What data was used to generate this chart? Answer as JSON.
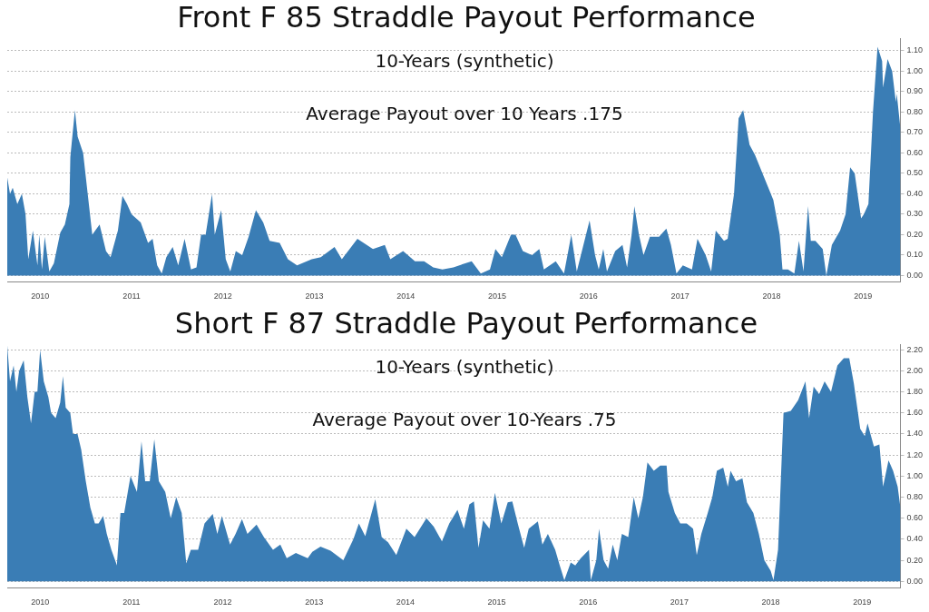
{
  "chart_data": [
    {
      "type": "area",
      "title": "Front F 85 Straddle Payout Performance",
      "subtitle": "10-Years (synthetic)",
      "annotations": [
        "Average Payout over 10 Years .175"
      ],
      "color": "#3a7db5",
      "grid": "y",
      "x": [
        2009.64,
        2009.67,
        2009.7,
        2009.75,
        2009.8,
        2009.84,
        2009.87,
        2009.92,
        2009.97,
        2009.99,
        2010.02,
        2010.05,
        2010.1,
        2010.15,
        2010.22,
        2010.27,
        2010.32,
        2010.33,
        2010.38,
        2010.41,
        2010.47,
        2010.52,
        2010.57,
        2010.65,
        2010.72,
        2010.77,
        2010.85,
        2010.9,
        2010.95,
        2011.0,
        2011.1,
        2011.18,
        2011.23,
        2011.28,
        2011.33,
        2011.38,
        2011.45,
        2011.51,
        2011.58,
        2011.65,
        2011.71,
        2011.76,
        2011.81,
        2011.88,
        2011.91,
        2011.98,
        2012.03,
        2012.08,
        2012.14,
        2012.21,
        2012.28,
        2012.36,
        2012.44,
        2012.51,
        2012.62,
        2012.71,
        2012.81,
        2012.97,
        2013.07,
        2013.22,
        2013.3,
        2013.47,
        2013.64,
        2013.77,
        2013.83,
        2013.97,
        2014.1,
        2014.2,
        2014.3,
        2014.4,
        2014.52,
        2014.65,
        2014.72,
        2014.82,
        2014.92,
        2014.98,
        2015.05,
        2015.15,
        2015.2,
        2015.28,
        2015.38,
        2015.46,
        2015.51,
        2015.64,
        2015.73,
        2015.81,
        2015.87,
        2016.01,
        2016.07,
        2016.11,
        2016.16,
        2016.2,
        2016.29,
        2016.37,
        2016.42,
        2016.47,
        2016.5,
        2016.55,
        2016.6,
        2016.67,
        2016.77,
        2016.85,
        2016.9,
        2016.96,
        2017.03,
        2017.13,
        2017.19,
        2017.28,
        2017.34,
        2017.39,
        2017.48,
        2017.52,
        2017.59,
        2017.64,
        2017.69,
        2017.76,
        2017.82,
        2017.92,
        2018.02,
        2018.09,
        2018.12,
        2018.18,
        2018.25,
        2018.3,
        2018.35,
        2018.4,
        2018.43,
        2018.48,
        2018.56,
        2018.6,
        2018.66,
        2018.75,
        2018.81,
        2018.86,
        2018.91,
        2018.98,
        2019.01,
        2019.06,
        2019.11,
        2019.16,
        2019.21,
        2019.22,
        2019.27,
        2019.32,
        2019.36,
        2019.37,
        2019.41
      ],
      "values": [
        0.48,
        0.4,
        0.43,
        0.35,
        0.4,
        0.3,
        0.08,
        0.22,
        0.05,
        0.2,
        0.03,
        0.19,
        0.02,
        0.06,
        0.21,
        0.25,
        0.35,
        0.58,
        0.81,
        0.68,
        0.6,
        0.4,
        0.2,
        0.25,
        0.12,
        0.09,
        0.22,
        0.39,
        0.35,
        0.3,
        0.26,
        0.16,
        0.18,
        0.05,
        0.01,
        0.09,
        0.14,
        0.05,
        0.18,
        0.03,
        0.04,
        0.2,
        0.2,
        0.4,
        0.2,
        0.32,
        0.08,
        0.02,
        0.12,
        0.1,
        0.19,
        0.32,
        0.26,
        0.17,
        0.16,
        0.08,
        0.05,
        0.08,
        0.09,
        0.14,
        0.08,
        0.18,
        0.13,
        0.15,
        0.08,
        0.12,
        0.07,
        0.07,
        0.04,
        0.03,
        0.04,
        0.06,
        0.07,
        0.01,
        0.03,
        0.13,
        0.09,
        0.2,
        0.2,
        0.12,
        0.1,
        0.13,
        0.03,
        0.07,
        0.01,
        0.2,
        0.02,
        0.27,
        0.1,
        0.03,
        0.13,
        0.02,
        0.12,
        0.15,
        0.04,
        0.2,
        0.34,
        0.2,
        0.1,
        0.19,
        0.19,
        0.23,
        0.15,
        0.01,
        0.05,
        0.03,
        0.18,
        0.1,
        0.02,
        0.22,
        0.17,
        0.18,
        0.4,
        0.77,
        0.81,
        0.64,
        0.59,
        0.48,
        0.37,
        0.2,
        0.03,
        0.03,
        0.01,
        0.17,
        0.02,
        0.34,
        0.17,
        0.17,
        0.13,
        0.0,
        0.15,
        0.22,
        0.3,
        0.53,
        0.5,
        0.28,
        0.3,
        0.35,
        0.8,
        1.12,
        1.05,
        0.92,
        1.06,
        1.0,
        0.85,
        0.89,
        0.72
      ],
      "xlim": [
        2009.64,
        2019.41
      ],
      "xticks": [
        2010,
        2011,
        2012,
        2013,
        2014,
        2015,
        2016,
        2017,
        2018,
        2019
      ],
      "ylim": [
        -0.03,
        1.16
      ],
      "yticks": [
        {
          "value": 0,
          "label": "0.00"
        },
        {
          "value": 0.1,
          "label": "0.10"
        },
        {
          "value": 0.2,
          "label": "0.20"
        },
        {
          "value": 0.3,
          "label": "0.30"
        },
        {
          "value": 0.4,
          "label": "0.40"
        },
        {
          "value": 0.5,
          "label": "0.50"
        },
        {
          "value": 0.6,
          "label": "0.60"
        },
        {
          "value": 0.7,
          "label": "0.70"
        },
        {
          "value": 0.8,
          "label": "0.80"
        },
        {
          "value": 0.9,
          "label": "0.90"
        },
        {
          "value": 1.0,
          "label": "1.00"
        },
        {
          "value": 1.1,
          "label": "1.10"
        }
      ]
    },
    {
      "type": "area",
      "title": "Short F 87 Straddle Payout Performance",
      "subtitle": "10-Years (synthetic)",
      "annotations": [
        "Average Payout over 10-Years .75"
      ],
      "color": "#3a7db5",
      "grid": "y",
      "x": [
        2009.64,
        2009.67,
        2009.71,
        2009.74,
        2009.77,
        2009.82,
        2009.86,
        2009.9,
        2009.94,
        2009.97,
        2010.0,
        2010.04,
        2010.09,
        2010.12,
        2010.17,
        2010.22,
        2010.25,
        2010.28,
        2010.33,
        2010.36,
        2010.41,
        2010.45,
        2010.5,
        2010.55,
        2010.6,
        2010.64,
        2010.69,
        2010.73,
        2010.78,
        2010.83,
        2010.84,
        2010.88,
        2010.92,
        2010.99,
        2011.06,
        2011.11,
        2011.15,
        2011.2,
        2011.25,
        2011.3,
        2011.37,
        2011.43,
        2011.49,
        2011.55,
        2011.6,
        2011.65,
        2011.73,
        2011.8,
        2011.89,
        2011.94,
        2011.99,
        2012.08,
        2012.14,
        2012.21,
        2012.27,
        2012.37,
        2012.45,
        2012.55,
        2012.63,
        2012.7,
        2012.8,
        2012.93,
        2012.98,
        2013.07,
        2013.18,
        2013.32,
        2013.43,
        2013.49,
        2013.56,
        2013.67,
        2013.74,
        2013.81,
        2013.9,
        2014.01,
        2014.1,
        2014.23,
        2014.31,
        2014.4,
        2014.48,
        2014.57,
        2014.64,
        2014.7,
        2014.75,
        2014.8,
        2014.85,
        2014.92,
        2014.98,
        2015.05,
        2015.12,
        2015.17,
        2015.23,
        2015.3,
        2015.35,
        2015.45,
        2015.5,
        2015.56,
        2015.64,
        2015.69,
        2015.74,
        2015.81,
        2015.86,
        2015.92,
        2016.01,
        2016.03,
        2016.09,
        2016.12,
        2016.17,
        2016.22,
        2016.27,
        2016.32,
        2016.37,
        2016.44,
        2016.5,
        2016.55,
        2016.6,
        2016.65,
        2016.72,
        2016.79,
        2016.86,
        2016.88,
        2016.95,
        2017.01,
        2017.08,
        2017.15,
        2017.19,
        2017.24,
        2017.31,
        2017.36,
        2017.41,
        2017.48,
        2017.53,
        2017.56,
        2017.62,
        2017.69,
        2017.74,
        2017.81,
        2017.87,
        2017.93,
        2018.0,
        2018.03,
        2018.08,
        2018.14,
        2018.22,
        2018.3,
        2018.38,
        2018.42,
        2018.47,
        2018.53,
        2018.59,
        2018.66,
        2018.73,
        2018.8,
        2018.86,
        2018.91,
        2018.98,
        2019.03,
        2019.06,
        2019.13,
        2019.19,
        2019.23,
        2019.29,
        2019.34,
        2019.39,
        2019.42
      ],
      "values": [
        2.24,
        1.9,
        2.05,
        1.8,
        2.0,
        2.1,
        1.75,
        1.5,
        1.8,
        1.8,
        2.2,
        1.9,
        1.75,
        1.6,
        1.55,
        1.7,
        1.95,
        1.65,
        1.6,
        1.4,
        1.4,
        1.25,
        0.95,
        0.7,
        0.55,
        0.55,
        0.62,
        0.45,
        0.3,
        0.18,
        0.15,
        0.65,
        0.65,
        1.0,
        0.85,
        1.33,
        0.95,
        0.95,
        1.35,
        0.95,
        0.85,
        0.6,
        0.8,
        0.65,
        0.17,
        0.3,
        0.3,
        0.55,
        0.64,
        0.45,
        0.62,
        0.35,
        0.45,
        0.59,
        0.45,
        0.54,
        0.42,
        0.3,
        0.35,
        0.22,
        0.27,
        0.22,
        0.28,
        0.33,
        0.29,
        0.2,
        0.4,
        0.55,
        0.43,
        0.78,
        0.42,
        0.37,
        0.25,
        0.5,
        0.42,
        0.6,
        0.52,
        0.38,
        0.55,
        0.68,
        0.5,
        0.73,
        0.76,
        0.32,
        0.58,
        0.5,
        0.84,
        0.55,
        0.75,
        0.76,
        0.55,
        0.32,
        0.5,
        0.57,
        0.35,
        0.45,
        0.3,
        0.15,
        0.01,
        0.18,
        0.15,
        0.22,
        0.3,
        0.01,
        0.2,
        0.5,
        0.2,
        0.12,
        0.35,
        0.2,
        0.45,
        0.42,
        0.8,
        0.6,
        0.8,
        1.13,
        1.05,
        1.1,
        1.1,
        0.85,
        0.65,
        0.55,
        0.55,
        0.5,
        0.25,
        0.45,
        0.65,
        0.8,
        1.05,
        1.08,
        0.9,
        1.05,
        0.95,
        0.98,
        0.75,
        0.65,
        0.45,
        0.2,
        0.1,
        0.01,
        0.3,
        1.6,
        1.62,
        1.72,
        1.9,
        1.55,
        1.85,
        1.78,
        1.9,
        1.8,
        2.05,
        2.12,
        2.12,
        1.88,
        1.45,
        1.38,
        1.5,
        1.28,
        1.3,
        0.9,
        1.15,
        1.05,
        0.9,
        0.7
      ],
      "xlim": [
        2009.64,
        2019.42
      ],
      "xticks": [
        2010,
        2011,
        2012,
        2013,
        2014,
        2015,
        2016,
        2017,
        2018,
        2019
      ],
      "ylim": [
        -0.06,
        2.25
      ],
      "yticks": [
        {
          "value": 0,
          "label": "0.00"
        },
        {
          "value": 0.2,
          "label": "0.20"
        },
        {
          "value": 0.4,
          "label": "0.40"
        },
        {
          "value": 0.6,
          "label": "0.60"
        },
        {
          "value": 0.8,
          "label": "0.80"
        },
        {
          "value": 1.0,
          "label": "1.00"
        },
        {
          "value": 1.2,
          "label": "1.20"
        },
        {
          "value": 1.4,
          "label": "1.40"
        },
        {
          "value": 1.6,
          "label": "1.60"
        },
        {
          "value": 1.8,
          "label": "1.80"
        },
        {
          "value": 2.0,
          "label": "2.00"
        },
        {
          "value": 2.2,
          "label": "2.20"
        }
      ]
    }
  ]
}
